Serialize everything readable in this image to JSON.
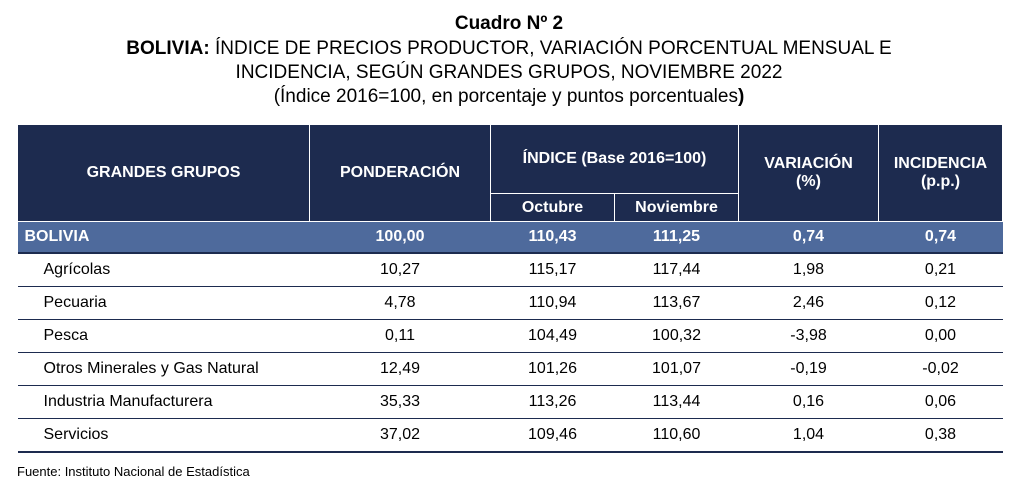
{
  "title": {
    "line1": "Cuadro Nº 2",
    "line2_bold": "BOLIVIA:",
    "line2_rest": " ÍNDICE DE PRECIOS PRODUCTOR, VARIACIÓN PORCENTUAL MENSUAL E",
    "line3": "INCIDENCIA, SEGÚN GRANDES GRUPOS, NOVIEMBRE 2022",
    "line4_open": "(Índice 2016=100, en porcentaje y puntos porcentuales",
    "line4_close": ")"
  },
  "table": {
    "headers": {
      "grupos": "GRANDES GRUPOS",
      "ponderacion": "PONDERACIÓN",
      "indice": "ÍNDICE (Base 2016=100)",
      "octubre": "Octubre",
      "noviembre": "Noviembre",
      "variacion": "VARIACIÓN",
      "variacion_unit": "(%)",
      "incidencia": "INCIDENCIA",
      "incidencia_unit": "(p.p.)"
    },
    "total": {
      "name": "BOLIVIA",
      "ponderacion": "100,00",
      "octubre": "110,43",
      "noviembre": "111,25",
      "variacion": "0,74",
      "incidencia": "0,74"
    },
    "rows": [
      {
        "name": "Agrícolas",
        "ponderacion": "10,27",
        "octubre": "115,17",
        "noviembre": "117,44",
        "variacion": "1,98",
        "incidencia": "0,21"
      },
      {
        "name": "Pecuaria",
        "ponderacion": "4,78",
        "octubre": "110,94",
        "noviembre": "113,67",
        "variacion": "2,46",
        "incidencia": "0,12"
      },
      {
        "name": "Pesca",
        "ponderacion": "0,11",
        "octubre": "104,49",
        "noviembre": "100,32",
        "variacion": "-3,98",
        "incidencia": "0,00"
      },
      {
        "name": "Otros Minerales y Gas Natural",
        "ponderacion": "12,49",
        "octubre": "101,26",
        "noviembre": "101,07",
        "variacion": "-0,19",
        "incidencia": "-0,02"
      },
      {
        "name": "Industria Manufacturera",
        "ponderacion": "35,33",
        "octubre": "113,26",
        "noviembre": "113,44",
        "variacion": "0,16",
        "incidencia": "0,06"
      },
      {
        "name": "Servicios",
        "ponderacion": "37,02",
        "octubre": "109,46",
        "noviembre": "110,60",
        "variacion": "1,04",
        "incidencia": "0,38"
      }
    ]
  },
  "source": "Fuente: Instituto Nacional de Estadística",
  "colors": {
    "header_bg": "#1d2b4f",
    "total_bg": "#4e6a9c",
    "rule": "#1d2b4f"
  }
}
